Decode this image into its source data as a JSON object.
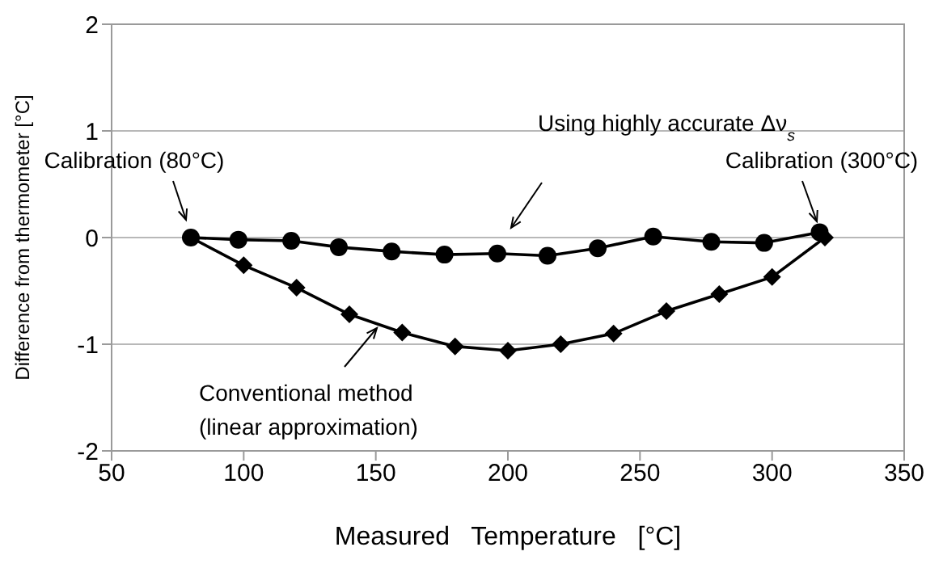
{
  "chart_data": {
    "type": "line",
    "xlabel": "Measured   Temperature   [°C]",
    "ylabel": "Difference from thermometer [°C]",
    "xlim": [
      50,
      350
    ],
    "xticks": [
      50,
      100,
      150,
      200,
      250,
      300,
      350
    ],
    "ylim": [
      -2,
      2
    ],
    "yticks": [
      -2,
      -1,
      0,
      1,
      2
    ],
    "grid": "y",
    "series": [
      {
        "color": "#000000",
        "marker": "circle",
        "x": [
          80,
          98,
          118,
          136,
          156,
          176,
          196,
          215,
          234,
          255,
          277,
          297,
          318
        ],
        "values": [
          0,
          -0.02,
          -0.03,
          -0.09,
          -0.13,
          -0.16,
          -0.15,
          -0.17,
          -0.1,
          0.01,
          -0.04,
          -0.05,
          0.05
        ]
      },
      {
        "color": "#000000",
        "marker": "diamond",
        "x": [
          80,
          100,
          120,
          140,
          160,
          180,
          200,
          220,
          240,
          260,
          280,
          300,
          320
        ],
        "values": [
          0,
          -0.26,
          -0.47,
          -0.72,
          -0.89,
          -1.02,
          -1.06,
          -1,
          -0.9,
          -0.69,
          -0.53,
          -0.37,
          0
        ]
      }
    ],
    "annotations": [
      "Calibration (80°C)",
      "Calibration (300°C)",
      "Using highly accurate Δν$_{s}$",
      "Conventional method\n(linear approximation)"
    ]
  }
}
